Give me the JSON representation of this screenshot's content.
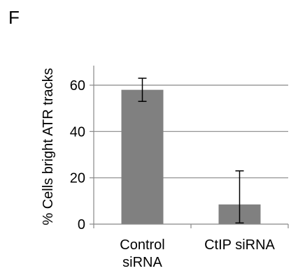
{
  "panel_label": "F",
  "chart_data": {
    "type": "bar",
    "title": "",
    "xlabel": "",
    "ylabel": "% Cells bright ATR tracks",
    "categories": [
      [
        "Control",
        "siRNA"
      ],
      [
        "CtIP siRNA"
      ]
    ],
    "category_names": [
      "Control siRNA",
      "CtIP siRNA"
    ],
    "values": [
      58,
      8.5
    ],
    "error_low": [
      53,
      0.5
    ],
    "error_high": [
      63,
      23
    ],
    "ylim": [
      0,
      60
    ],
    "yticks": [
      0,
      20,
      40,
      60
    ],
    "grid": true,
    "legend": "none",
    "bar_color": "#808080",
    "grid_color": "#888888"
  }
}
